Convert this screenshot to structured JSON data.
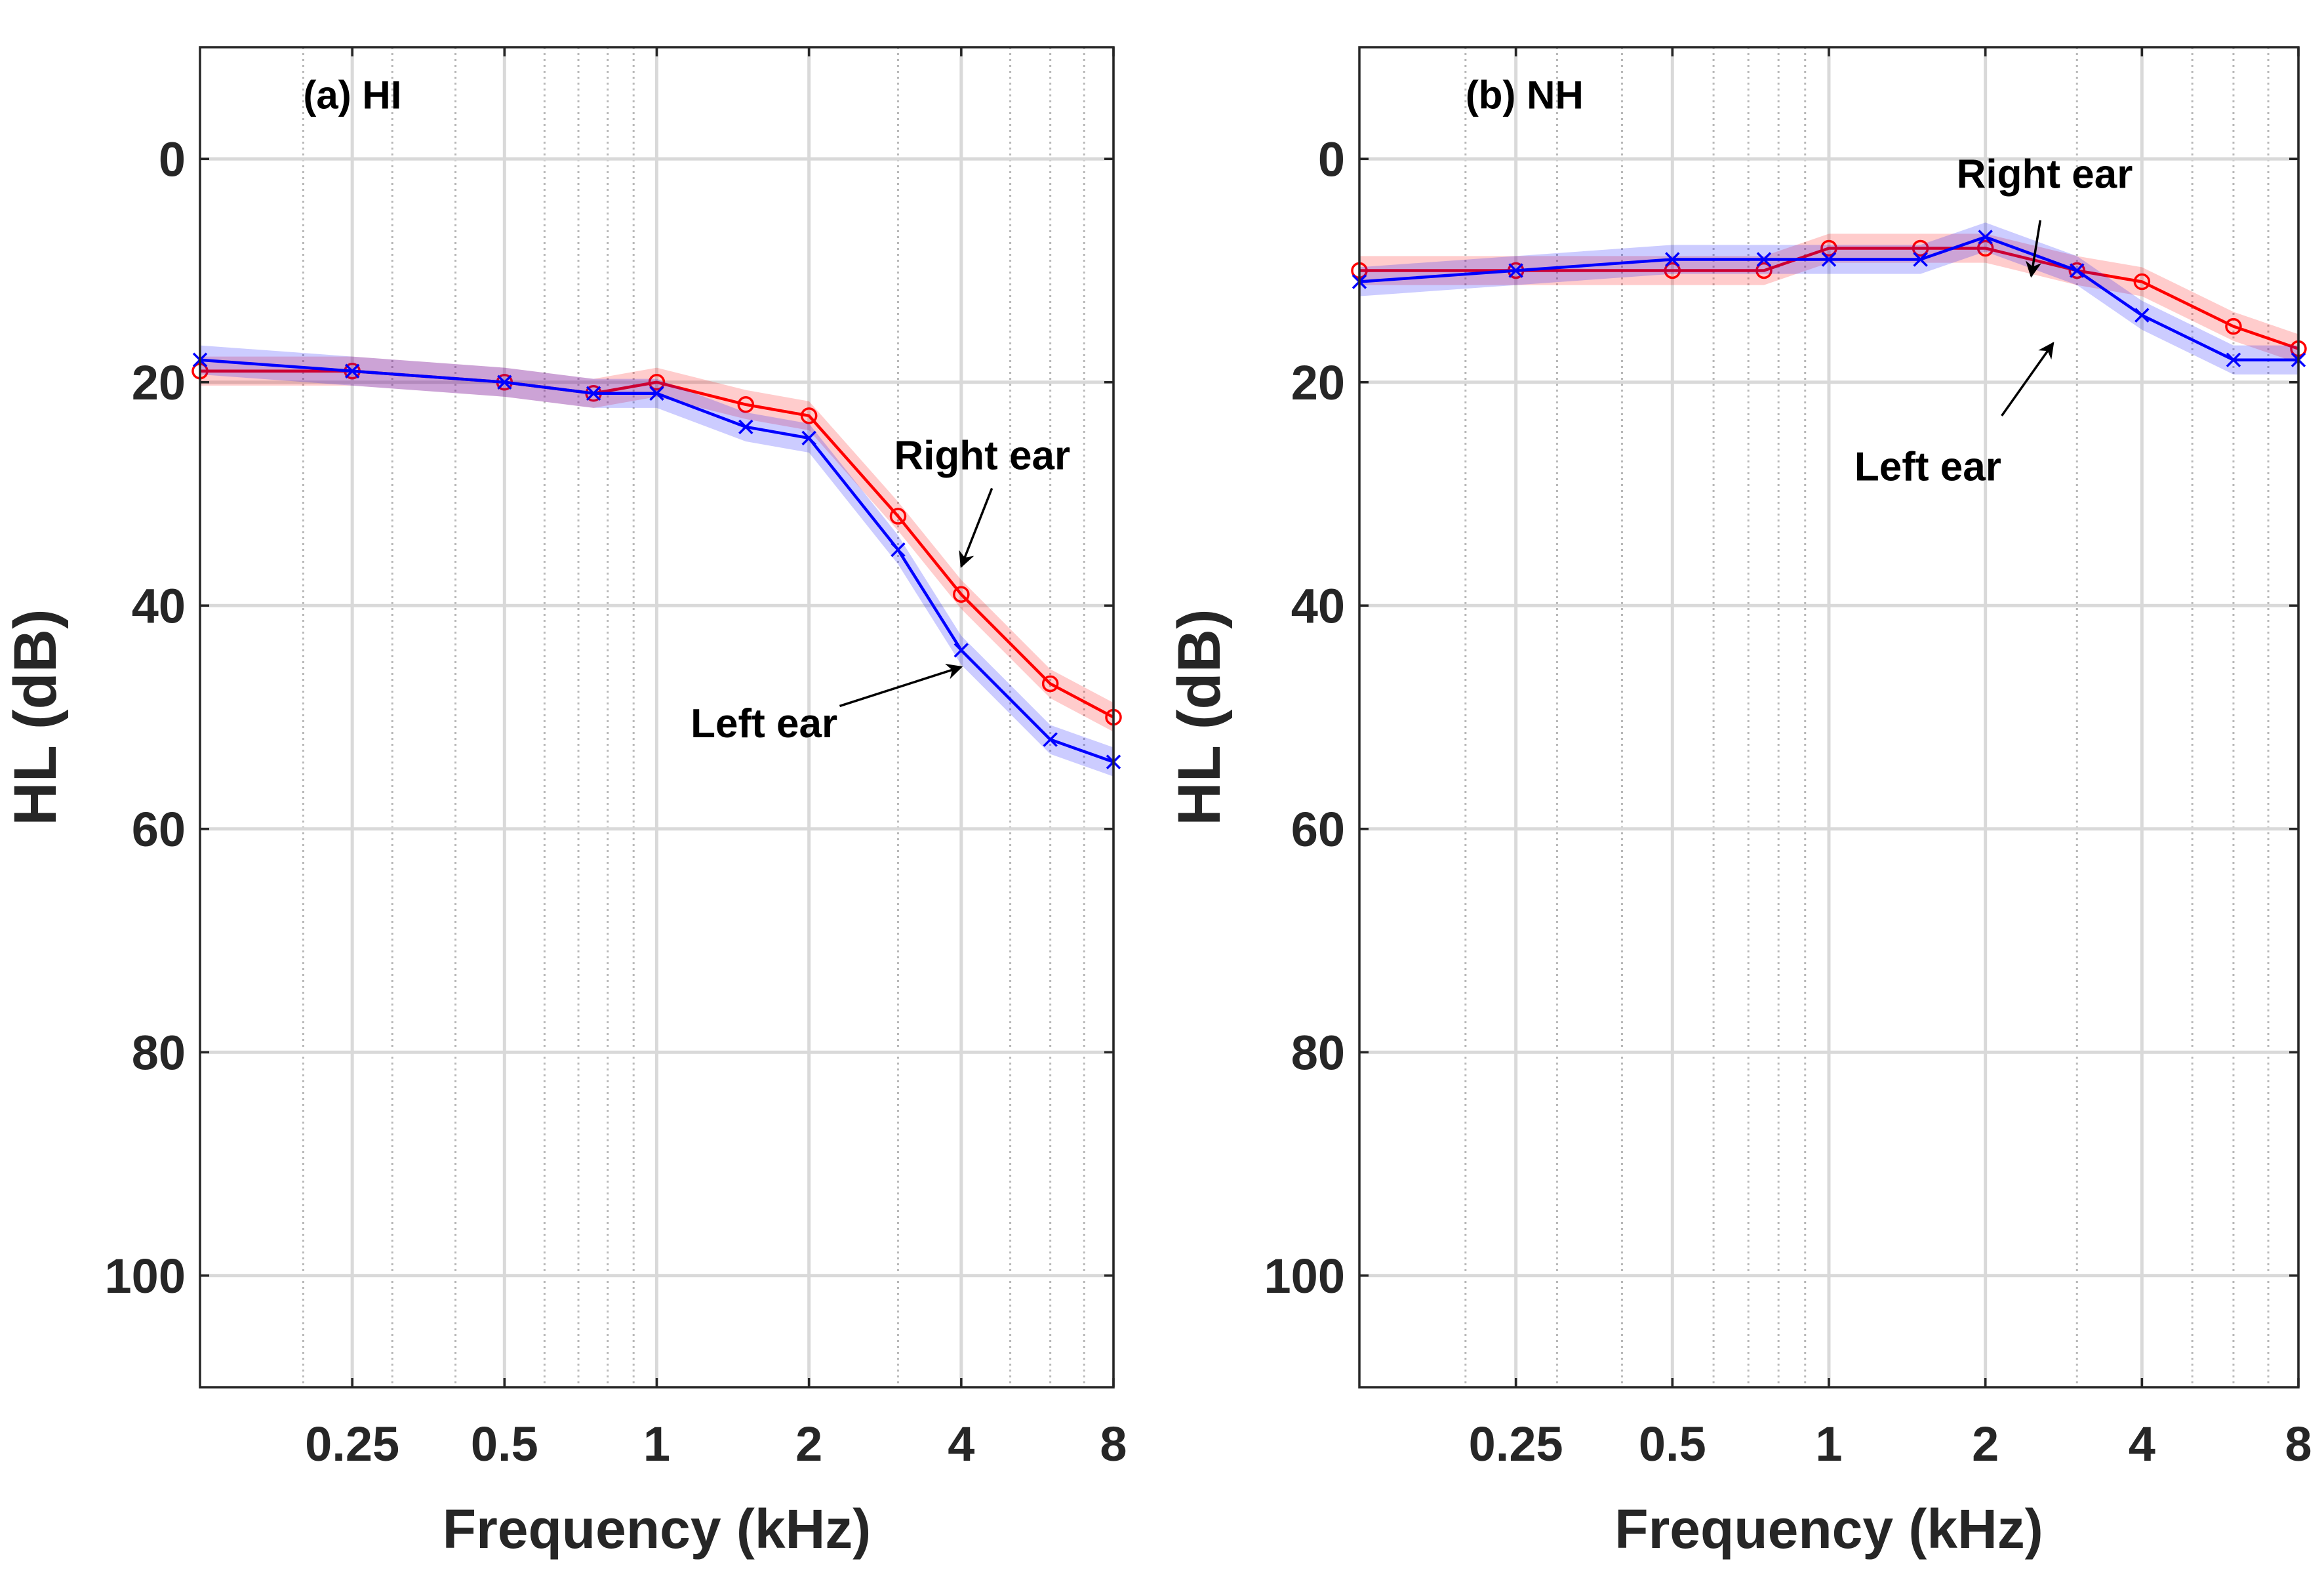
{
  "chart_data": [
    {
      "type": "line",
      "panel_label": "(a) HI",
      "xlabel": "Frequency (kHz)",
      "ylabel": "HL (dB)",
      "x_scale": "log",
      "xlim": [
        0.125,
        8
      ],
      "ylim": [
        -10,
        110
      ],
      "y_reversed": true,
      "grid": true,
      "x_ticks": [
        0.25,
        0.5,
        1,
        2,
        4,
        8
      ],
      "x_tick_labels": [
        "0.25",
        "0.5",
        "1",
        "2",
        "4",
        "8"
      ],
      "y_ticks": [
        0,
        20,
        40,
        60,
        80,
        100
      ],
      "y_tick_labels": [
        "0",
        "20",
        "40",
        "60",
        "80",
        "100"
      ],
      "x": [
        0.125,
        0.25,
        0.5,
        0.75,
        1,
        1.5,
        2,
        3,
        4,
        6,
        8
      ],
      "series": [
        {
          "name": "Right ear",
          "color": "#ff0000",
          "marker": "circle",
          "values": [
            19,
            19,
            20,
            21,
            20,
            22,
            23,
            32,
            39,
            47,
            50
          ],
          "band": 1.3
        },
        {
          "name": "Left ear",
          "color": "#0000ff",
          "marker": "x",
          "values": [
            18,
            19,
            20,
            21,
            21,
            24,
            25,
            35,
            44,
            52,
            54
          ],
          "band": 1.3
        }
      ],
      "annotations": [
        {
          "text": "Right ear",
          "label_at": [
            4.4,
            26.5
          ],
          "label_anchor": "middle",
          "arrow_from": [
            4.6,
            29.5
          ],
          "arrow_to": [
            4.0,
            36.5
          ]
        },
        {
          "text": "Left ear",
          "label_at": [
            1.63,
            50.5
          ],
          "label_anchor": "middle",
          "arrow_from": [
            2.3,
            49.0
          ],
          "arrow_to": [
            4.0,
            45.5
          ]
        }
      ]
    },
    {
      "type": "line",
      "panel_label": "(b) NH",
      "xlabel": "Frequency (kHz)",
      "ylabel": "HL (dB)",
      "x_scale": "log",
      "xlim": [
        0.125,
        8
      ],
      "ylim": [
        -10,
        110
      ],
      "y_reversed": true,
      "grid": true,
      "x_ticks": [
        0.25,
        0.5,
        1,
        2,
        4,
        8
      ],
      "x_tick_labels": [
        "0.25",
        "0.5",
        "1",
        "2",
        "4",
        "8"
      ],
      "y_ticks": [
        0,
        20,
        40,
        60,
        80,
        100
      ],
      "y_tick_labels": [
        "0",
        "20",
        "40",
        "60",
        "80",
        "100"
      ],
      "x": [
        0.125,
        0.25,
        0.5,
        0.75,
        1,
        1.5,
        2,
        3,
        4,
        6,
        8
      ],
      "series": [
        {
          "name": "Right ear",
          "color": "#ff0000",
          "marker": "circle",
          "values": [
            10,
            10,
            10,
            10,
            8,
            8,
            8,
            10,
            11,
            15,
            17
          ],
          "band": 1.3
        },
        {
          "name": "Left ear",
          "color": "#0000ff",
          "marker": "x",
          "values": [
            11,
            10,
            9,
            9,
            9,
            9,
            7,
            10,
            14,
            18,
            18
          ],
          "band": 1.3
        }
      ],
      "annotations": [
        {
          "text": "Right ear",
          "label_at": [
            2.6,
            1.3
          ],
          "label_anchor": "middle",
          "arrow_from": [
            2.55,
            5.5
          ],
          "arrow_to": [
            2.45,
            10.5
          ]
        },
        {
          "text": "Left ear",
          "label_at": [
            1.55,
            27.5
          ],
          "label_anchor": "middle",
          "arrow_from": [
            2.15,
            23.0
          ],
          "arrow_to": [
            2.7,
            16.5
          ]
        }
      ]
    }
  ]
}
